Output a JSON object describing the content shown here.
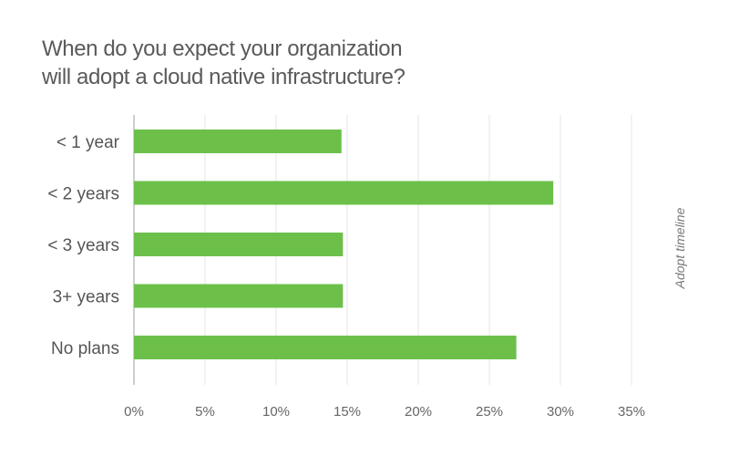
{
  "chart_data": {
    "type": "bar",
    "orientation": "horizontal",
    "title_lines": [
      "When do you expect your organization",
      "will adopt a cloud native infrastructure?"
    ],
    "categories": [
      "< 1 year",
      "< 2 years",
      "< 3 years",
      "3+ years",
      "No plans"
    ],
    "values": [
      14.6,
      29.5,
      14.7,
      14.7,
      26.9
    ],
    "xlim": [
      0,
      35
    ],
    "xticks": [
      "0%",
      "5%",
      "10%",
      "15%",
      "20%",
      "25%",
      "30%",
      "35%"
    ],
    "side_label": "Adopt timeline",
    "grid": "vertical",
    "bar_color": "#6cc04a",
    "grid_color": "#e6e6e6",
    "axis_color": "#bdbdbd"
  }
}
